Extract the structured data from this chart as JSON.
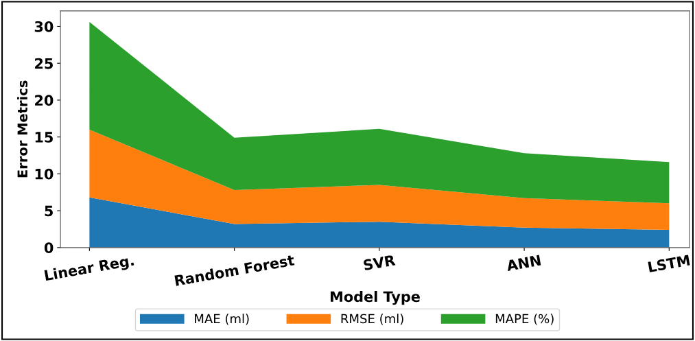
{
  "chart_data": {
    "type": "area",
    "stacked": true,
    "xlabel": "Model Type",
    "ylabel": "Error Metrics",
    "categories": [
      "Linear Reg.",
      "Random Forest",
      "SVR",
      "ANN",
      "LSTM"
    ],
    "series": [
      {
        "name": "MAE (ml)",
        "color": "#1f77b4",
        "values": [
          6.8,
          3.2,
          3.5,
          2.7,
          2.4
        ]
      },
      {
        "name": "RMSE (ml)",
        "color": "#ff7f0e",
        "values": [
          9.2,
          4.6,
          5.0,
          4.0,
          3.6
        ]
      },
      {
        "name": "MAPE (%)",
        "color": "#2ca02c",
        "values": [
          14.6,
          7.1,
          7.6,
          6.1,
          5.6
        ]
      }
    ],
    "ylim": [
      0,
      32.1
    ],
    "yticks": [
      0,
      5,
      10,
      15,
      20,
      25,
      30
    ],
    "grid": false,
    "legend": "bottom"
  }
}
